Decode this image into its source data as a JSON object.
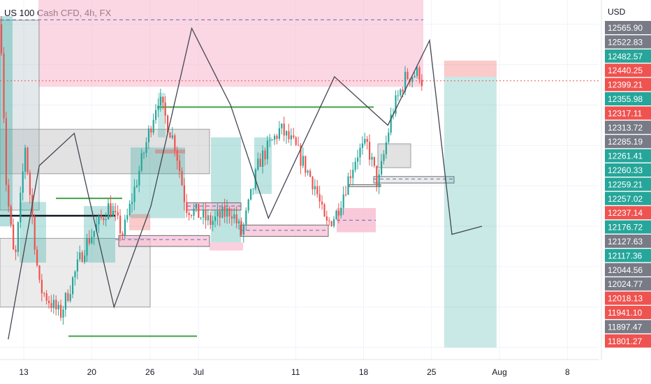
{
  "header": {
    "title": "US 100 Cash CFD, 4h, FX"
  },
  "chart_data": {
    "type": "candlestick",
    "currency": "USD",
    "ylim": [
      11770,
      12660
    ],
    "colors": {
      "up": "#26a69a",
      "down": "#ef5350",
      "neutral": "#787b86"
    },
    "x_ticks": [
      {
        "label": "13",
        "day": 13
      },
      {
        "label": "20",
        "day": 20
      },
      {
        "label": "26",
        "day": 26
      },
      {
        "label": "Jul",
        "day": 31
      },
      {
        "label": "11",
        "day": 41
      },
      {
        "label": "18",
        "day": 48
      },
      {
        "label": "25",
        "day": 55
      },
      {
        "label": "Aug",
        "day": 62
      },
      {
        "label": "8",
        "day": 69
      }
    ],
    "price_labels": [
      {
        "value": 12565.9,
        "text": "12565.90",
        "color": "neutral"
      },
      {
        "value": 12522.83,
        "text": "12522.83",
        "color": "neutral"
      },
      {
        "value": 12482.57,
        "text": "12482.57",
        "color": "up"
      },
      {
        "value": 12440.25,
        "text": "12440.25",
        "color": "down"
      },
      {
        "value": 12399.21,
        "text": "12399.21",
        "color": "down"
      },
      {
        "value": 12355.98,
        "text": "12355.98",
        "color": "up"
      },
      {
        "value": 12317.11,
        "text": "12317.11",
        "color": "down"
      },
      {
        "value": 12313.72,
        "text": "12313.72",
        "color": "neutral"
      },
      {
        "value": 12285.19,
        "text": "12285.19",
        "color": "neutral"
      },
      {
        "value": 12261.41,
        "text": "12261.41",
        "color": "up"
      },
      {
        "value": 12260.33,
        "text": "12260.33",
        "color": "up"
      },
      {
        "value": 12259.21,
        "text": "12259.21",
        "color": "up"
      },
      {
        "value": 12257.02,
        "text": "12257.02",
        "color": "up"
      },
      {
        "value": 12237.14,
        "text": "12237.14",
        "color": "down"
      },
      {
        "value": 12176.72,
        "text": "12176.72",
        "color": "up"
      },
      {
        "value": 12127.63,
        "text": "12127.63",
        "color": "neutral"
      },
      {
        "value": 12117.36,
        "text": "12117.36",
        "color": "up"
      },
      {
        "value": 12044.56,
        "text": "12044.56",
        "color": "neutral"
      },
      {
        "value": 12024.77,
        "text": "12024.77",
        "color": "neutral"
      },
      {
        "value": 12018.13,
        "text": "12018.13",
        "color": "down"
      },
      {
        "value": 11941.1,
        "text": "11941.10",
        "color": "down"
      },
      {
        "value": 11897.47,
        "text": "11897.47",
        "color": "neutral"
      },
      {
        "value": 11801.27,
        "text": "11801.27",
        "color": "down"
      }
    ],
    "path_points": [
      [
        11.4,
        11820
      ],
      [
        14.6,
        12250
      ],
      [
        18.2,
        12330
      ],
      [
        22.3,
        11900
      ],
      [
        26.1,
        12150
      ],
      [
        30.3,
        12590
      ],
      [
        34.3,
        12400
      ],
      [
        38.2,
        12120
      ],
      [
        45.0,
        12470
      ],
      [
        50.5,
        12350
      ],
      [
        54.8,
        12560
      ],
      [
        57.1,
        12080
      ],
      [
        60.2,
        12100
      ]
    ],
    "short_position": {
      "start_day": 56.3,
      "end_day": 61.7,
      "stop": 12510,
      "entry": 12470,
      "target": 11800
    }
  }
}
